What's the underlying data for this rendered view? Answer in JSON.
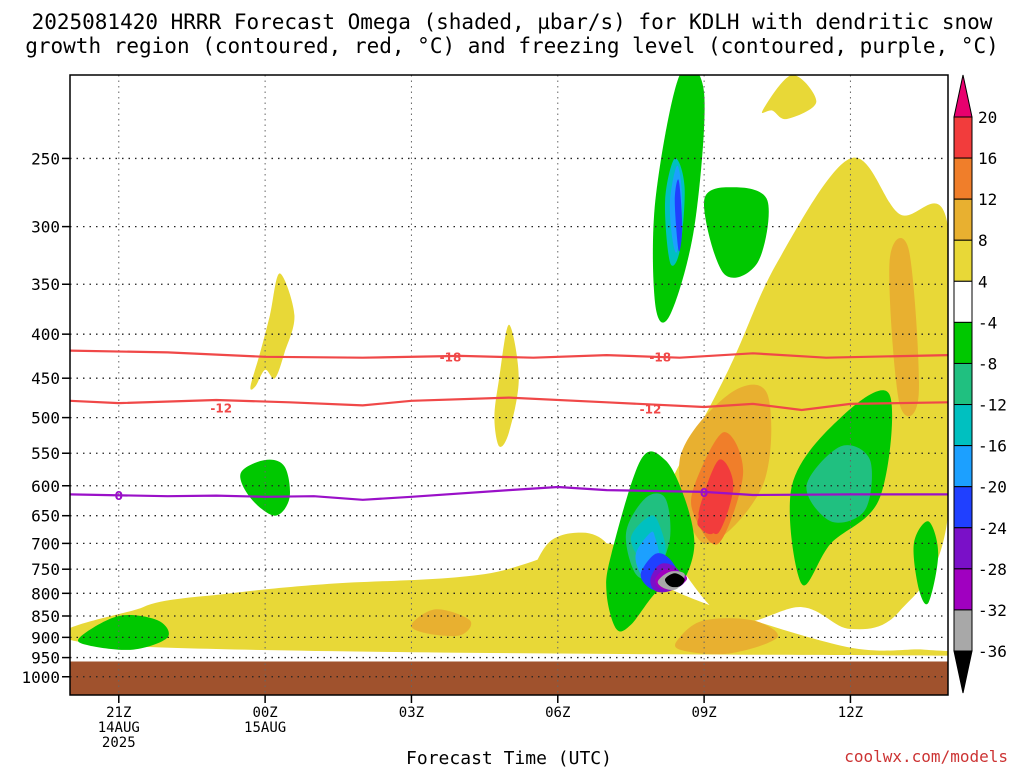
{
  "title": {
    "line1": "2025081420 HRRR Forecast Omega (shaded, µbar/s) for KDLH with dendritic snow",
    "line2": "growth region (contoured, red, °C) and freezing level (contoured, purple, °C)"
  },
  "credit": "coolwx.com/models",
  "chart_data": {
    "type": "heatmap",
    "title": "2025081420 HRRR Forecast Omega (shaded, µbar/s) for KDLH with dendritic snow growth region (contoured, red, °C) and freezing level (contoured, purple, °C)",
    "xlabel": "Forecast Time (UTC)",
    "ylabel": "",
    "x_hours_range": [
      -1,
      17
    ],
    "y_pressure_range": [
      1050,
      200
    ],
    "y_ticks": [
      250,
      300,
      350,
      400,
      450,
      500,
      550,
      600,
      650,
      700,
      750,
      800,
      850,
      900,
      950,
      1000
    ],
    "x_ticks": [
      {
        "hour": 0,
        "lines": [
          "21Z",
          "14AUG",
          "2025"
        ]
      },
      {
        "hour": 3,
        "lines": [
          "00Z",
          "15AUG"
        ]
      },
      {
        "hour": 6,
        "lines": [
          "03Z"
        ]
      },
      {
        "hour": 9,
        "lines": [
          "06Z"
        ]
      },
      {
        "hour": 12,
        "lines": [
          "09Z"
        ]
      },
      {
        "hour": 15,
        "lines": [
          "12Z"
        ]
      }
    ],
    "colorbar": {
      "levels": [
        "20",
        "16",
        "12",
        "8",
        "4",
        "-4",
        "-8",
        "-12",
        "-16",
        "-20",
        "-24",
        "-28",
        "-32",
        "-36"
      ],
      "colors": [
        "#e8006e",
        "#f23c3c",
        "#f07e2a",
        "#e8b030",
        "#e8d837",
        "#ffffff",
        "#00c800",
        "#20c080",
        "#00c0c0",
        "#1ca0ff",
        "#2040ff",
        "#7a10c8",
        "#a000c0",
        "#a8a8a8",
        "#000000"
      ],
      "units": "µbar/s"
    },
    "contours": [
      {
        "name": "-18",
        "color": "#f04848",
        "points": [
          [
            -1,
            418
          ],
          [
            1,
            420
          ],
          [
            3,
            425
          ],
          [
            5,
            426
          ],
          [
            7,
            424
          ],
          [
            8.5,
            426
          ],
          [
            10,
            423
          ],
          [
            11.5,
            426
          ],
          [
            13,
            421
          ],
          [
            14.5,
            426
          ],
          [
            17,
            423
          ]
        ]
      },
      {
        "name": "-12",
        "color": "#f04848",
        "points": [
          [
            -1,
            478
          ],
          [
            0,
            481
          ],
          [
            2,
            477
          ],
          [
            3.5,
            480
          ],
          [
            5,
            484
          ],
          [
            6,
            478
          ],
          [
            8,
            474
          ],
          [
            10,
            480
          ],
          [
            12,
            486
          ],
          [
            13,
            482
          ],
          [
            14,
            490
          ],
          [
            15,
            482
          ],
          [
            17,
            480
          ]
        ]
      },
      {
        "name": "0",
        "color": "#9a10c8",
        "points": [
          [
            -1,
            614
          ],
          [
            1,
            617
          ],
          [
            2,
            616
          ],
          [
            3,
            618
          ],
          [
            4,
            617
          ],
          [
            5,
            623
          ],
          [
            6,
            618
          ],
          [
            8,
            607
          ],
          [
            9,
            602
          ],
          [
            10,
            607
          ],
          [
            12,
            610
          ],
          [
            13,
            615
          ],
          [
            15,
            614
          ],
          [
            17,
            614
          ]
        ]
      }
    ],
    "contour_labels": [
      {
        "text": "-18",
        "x": 6.8,
        "y": 426
      },
      {
        "text": "-18",
        "x": 11.1,
        "y": 426
      },
      {
        "text": "-12",
        "x": 2.1,
        "y": 488
      },
      {
        "text": "-12",
        "x": 10.9,
        "y": 489
      },
      {
        "text": "0",
        "x": 0.0,
        "y": 617
      },
      {
        "text": "0",
        "x": 12.0,
        "y": 612
      }
    ],
    "ground_band": {
      "from_pressure": 960,
      "to_pressure": 1050,
      "color": "#a0522d"
    },
    "omega_regions": [
      {
        "value": 6,
        "x": [
          0.0,
          0.5,
          2.3,
          4.3,
          7.5,
          10.0,
          11.5,
          14.8,
          16.5,
          17.0
        ],
        "y": [
          920,
          830,
          800,
          780,
          760,
          700,
          800,
          920,
          930,
          945
        ]
      },
      {
        "value": 6,
        "x": [
          2.7,
          2.9,
          3.1,
          3.3,
          3.6,
          3.4,
          3.2,
          3.0,
          2.8
        ],
        "y": [
          460,
          420,
          380,
          340,
          380,
          420,
          450,
          440,
          460
        ]
      },
      {
        "value": 6,
        "x": [
          7.7,
          7.8,
          8.0,
          8.2,
          8.0,
          7.8
        ],
        "y": [
          500,
          450,
          390,
          450,
          520,
          540
        ]
      },
      {
        "value": 6,
        "x": [
          8.3,
          8.8,
          9.5,
          10.0,
          10.2,
          9.8,
          9.0,
          8.4
        ],
        "y": [
          800,
          700,
          680,
          700,
          760,
          790,
          810,
          820
        ]
      },
      {
        "value": 6,
        "x": [
          11.0,
          12.5,
          13.5,
          15.0,
          16.0,
          17.0,
          17.0,
          16.0,
          15.0,
          14.0,
          12.5,
          11.2
        ],
        "y": [
          650,
          440,
          330,
          250,
          290,
          300,
          650,
          840,
          880,
          830,
          860,
          700
        ]
      },
      {
        "value": 6,
        "x": [
          13.2,
          13.8,
          14.3,
          13.7,
          13.4
        ],
        "y": [
          220,
          200,
          215,
          225,
          220
        ]
      },
      {
        "value": 10,
        "x": [
          6.0,
          6.5,
          7.2,
          7.0,
          6.3
        ],
        "y": [
          870,
          835,
          860,
          895,
          890
        ]
      },
      {
        "value": 10,
        "x": [
          11.5,
          12.5,
          13.3,
          13.2,
          12.0
        ],
        "y": [
          560,
          470,
          470,
          600,
          700
        ]
      },
      {
        "value": 10,
        "x": [
          15.8,
          16.2,
          16.4,
          16.0
        ],
        "y": [
          330,
          320,
          470,
          480
        ]
      },
      {
        "value": 10,
        "x": [
          11.5,
          12.0,
          13.0,
          13.5,
          12.5,
          11.5
        ],
        "y": [
          900,
          860,
          860,
          900,
          940,
          930
        ]
      },
      {
        "value": 14,
        "x": [
          11.8,
          12.4,
          12.8,
          12.3,
          11.8
        ],
        "y": [
          600,
          520,
          580,
          700,
          650
        ]
      },
      {
        "value": 18,
        "x": [
          11.9,
          12.3,
          12.6,
          12.3,
          12.0
        ],
        "y": [
          640,
          560,
          600,
          680,
          660
        ]
      },
      {
        "value": 20,
        "x": [
          11.9,
          12.2,
          12.5,
          12.2,
          11.9
        ],
        "y": [
          650,
          590,
          620,
          680,
          670
        ]
      },
      {
        "value": -6,
        "x": [
          -0.8,
          0.0,
          0.8,
          1.0,
          0.3,
          -0.6
        ],
        "y": [
          900,
          850,
          860,
          900,
          930,
          920
        ]
      },
      {
        "value": -6,
        "x": [
          2.5,
          3.0,
          3.4,
          3.5,
          3.2,
          2.7
        ],
        "y": [
          580,
          560,
          570,
          620,
          650,
          620
        ]
      },
      {
        "value": -6,
        "x": [
          10.1,
          10.7,
          11.2,
          11.6,
          11.8,
          11.6,
          11.3,
          11.0,
          10.5,
          10.2,
          10.0
        ],
        "y": [
          720,
          560,
          560,
          620,
          700,
          770,
          790,
          800,
          870,
          880,
          800
        ]
      },
      {
        "value": -6,
        "x": [
          11.0,
          11.5,
          12.0,
          11.8,
          11.3,
          11.0
        ],
        "y": [
          280,
          200,
          210,
          300,
          380,
          370
        ]
      },
      {
        "value": -6,
        "x": [
          12.0,
          12.6,
          13.3,
          13.1,
          12.4
        ],
        "y": [
          280,
          270,
          280,
          330,
          340
        ]
      },
      {
        "value": -6,
        "x": [
          13.8,
          14.8,
          15.8,
          15.6,
          14.6,
          14.0
        ],
        "y": [
          600,
          500,
          470,
          620,
          700,
          780
        ]
      },
      {
        "value": -6,
        "x": [
          16.3,
          16.6,
          16.8,
          16.6,
          16.4
        ],
        "y": [
          700,
          660,
          720,
          820,
          790
        ]
      },
      {
        "value": -10,
        "x": [
          10.4,
          10.8,
          11.2,
          11.3,
          11.0,
          10.6
        ],
        "y": [
          680,
          620,
          620,
          690,
          760,
          760
        ]
      },
      {
        "value": -10,
        "x": [
          14.1,
          14.8,
          15.4,
          15.3,
          14.6
        ],
        "y": [
          600,
          540,
          560,
          640,
          660
        ]
      },
      {
        "value": -14,
        "x": [
          10.5,
          10.9,
          11.1,
          11.2,
          10.8
        ],
        "y": [
          690,
          650,
          670,
          720,
          740
        ]
      },
      {
        "value": -14,
        "x": [
          11.2,
          11.4,
          11.6,
          11.5,
          11.3
        ],
        "y": [
          280,
          250,
          270,
          320,
          330
        ]
      },
      {
        "value": -18,
        "x": [
          10.6,
          10.9,
          11.0,
          11.1,
          10.9,
          10.7
        ],
        "y": [
          720,
          680,
          690,
          740,
          770,
          760
        ]
      },
      {
        "value": -18,
        "x": [
          11.3,
          11.45,
          11.55,
          11.45,
          11.35
        ],
        "y": [
          280,
          255,
          280,
          320,
          310
        ]
      },
      {
        "value": -22,
        "x": [
          10.7,
          11.0,
          11.3,
          11.5,
          11.2,
          10.9
        ],
        "y": [
          760,
          720,
          730,
          770,
          790,
          790
        ]
      },
      {
        "value": -22,
        "x": [
          11.4,
          11.48,
          11.55,
          11.48
        ],
        "y": [
          280,
          265,
          300,
          320
        ]
      },
      {
        "value": -26,
        "x": [
          10.9,
          11.1,
          11.4,
          11.6,
          11.3,
          11.0
        ],
        "y": [
          770,
          740,
          745,
          775,
          795,
          795
        ]
      },
      {
        "value": -30,
        "x": [
          11.0,
          11.2,
          11.5,
          11.65,
          11.4,
          11.1
        ],
        "y": [
          770,
          750,
          755,
          770,
          790,
          790
        ]
      },
      {
        "value": -34,
        "x": [
          11.05,
          11.3,
          11.6,
          11.45,
          11.2
        ],
        "y": [
          775,
          755,
          760,
          790,
          790
        ]
      },
      {
        "value": -38,
        "x": [
          11.2,
          11.4,
          11.6,
          11.5,
          11.3
        ],
        "y": [
          770,
          758,
          770,
          785,
          785
        ]
      }
    ]
  }
}
